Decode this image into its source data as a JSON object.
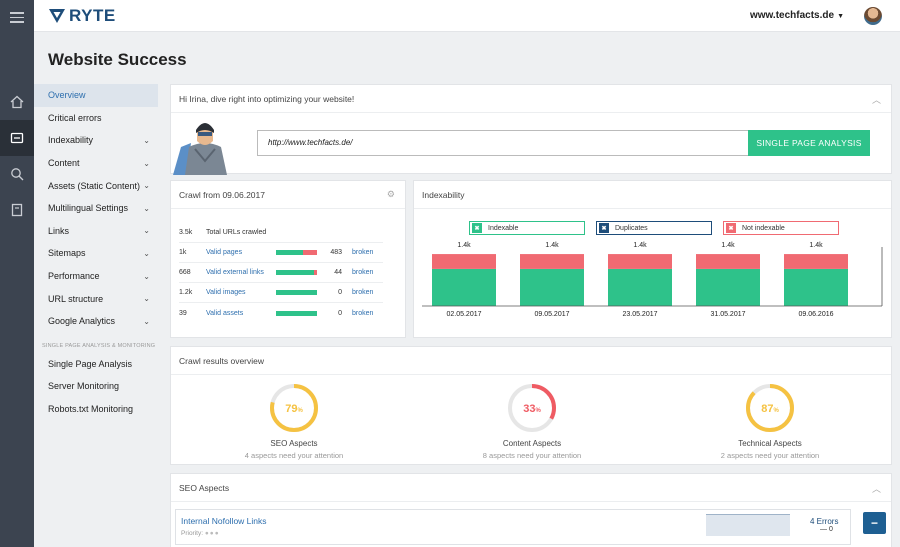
{
  "brand": {
    "name": "RYTE",
    "accent": "#2ec28a",
    "blue": "#1e4d7a",
    "red": "#f06a72"
  },
  "header": {
    "domain": "www.techfacts.de"
  },
  "page": {
    "title": "Website Success"
  },
  "menu": {
    "items": [
      {
        "label": "Overview",
        "active": true,
        "chevron": false
      },
      {
        "label": "Critical errors",
        "chevron": false
      },
      {
        "label": "Indexability",
        "chevron": true
      },
      {
        "label": "Content",
        "chevron": true
      },
      {
        "label": "Assets (Static Content)",
        "chevron": true
      },
      {
        "label": "Multilingual Settings",
        "chevron": true
      },
      {
        "label": "Links",
        "chevron": true
      },
      {
        "label": "Sitemaps",
        "chevron": true
      },
      {
        "label": "Performance",
        "chevron": true
      },
      {
        "label": "URL structure",
        "chevron": true
      },
      {
        "label": "Google Analytics",
        "chevron": true
      }
    ],
    "section_label": "SINGLE PAGE ANALYSIS & MONITORING",
    "section_items": [
      "Single Page Analysis",
      "Server Monitoring",
      "Robots.txt Monitoring"
    ]
  },
  "welcome": {
    "greeting": "Hi Irina, dive right into optimizing your website!",
    "url_value": "http://www.techfacts.de/",
    "button": "SINGLE PAGE ANALYSIS"
  },
  "crawl": {
    "title": "Crawl from 09.06.2017",
    "total": {
      "num": "3.5k",
      "label": "Total URLs crawled"
    },
    "rows": [
      {
        "num": "1k",
        "label": "Valid pages",
        "count": "483",
        "broken": "broken",
        "ratio": 0.34
      },
      {
        "num": "668",
        "label": "Valid external links",
        "count": "44",
        "broken": "broken",
        "ratio": 0.07
      },
      {
        "num": "1.2k",
        "label": "Valid images",
        "count": "0",
        "broken": "broken",
        "ratio": 0
      },
      {
        "num": "39",
        "label": "Valid assets",
        "count": "0",
        "broken": "broken",
        "ratio": 0
      }
    ]
  },
  "indexability": {
    "title": "Indexability",
    "legend": [
      "Indexable",
      "Duplicates",
      "Not indexable"
    ]
  },
  "chart_data": {
    "type": "bar",
    "stacked": true,
    "categories": [
      "02.05.2017",
      "09.05.2017",
      "23.05.2017",
      "31.05.2017",
      "09.06.2016"
    ],
    "totals_labels": [
      "1.4k",
      "1.4k",
      "1.4k",
      "1.4k",
      "1.4k"
    ],
    "series": [
      {
        "name": "Indexable",
        "values": [
          1000,
          1000,
          1000,
          1000,
          1000
        ]
      },
      {
        "name": "Not indexable",
        "values": [
          400,
          400,
          400,
          400,
          400
        ]
      }
    ],
    "ylim": [
      0,
      1500
    ]
  },
  "crawl_results": {
    "title": "Crawl results overview",
    "gauges": [
      {
        "value": 79,
        "label": "79",
        "unit": "%",
        "name": "SEO Aspects",
        "sub": "4 aspects need your attention",
        "color": "#f5c242"
      },
      {
        "value": 33,
        "label": "33",
        "unit": "%",
        "name": "Content Aspects",
        "sub": "8 aspects need your attention",
        "color": "#ef5b63"
      },
      {
        "value": 87,
        "label": "87",
        "unit": "%",
        "name": "Technical Aspects",
        "sub": "2 aspects need your attention",
        "color": "#f5c242"
      }
    ]
  },
  "seo": {
    "title": "SEO Aspects",
    "item": "Internal Nofollow Links",
    "priority_label": "Priority:",
    "errors": "4 Errors",
    "delta": "— 0"
  }
}
